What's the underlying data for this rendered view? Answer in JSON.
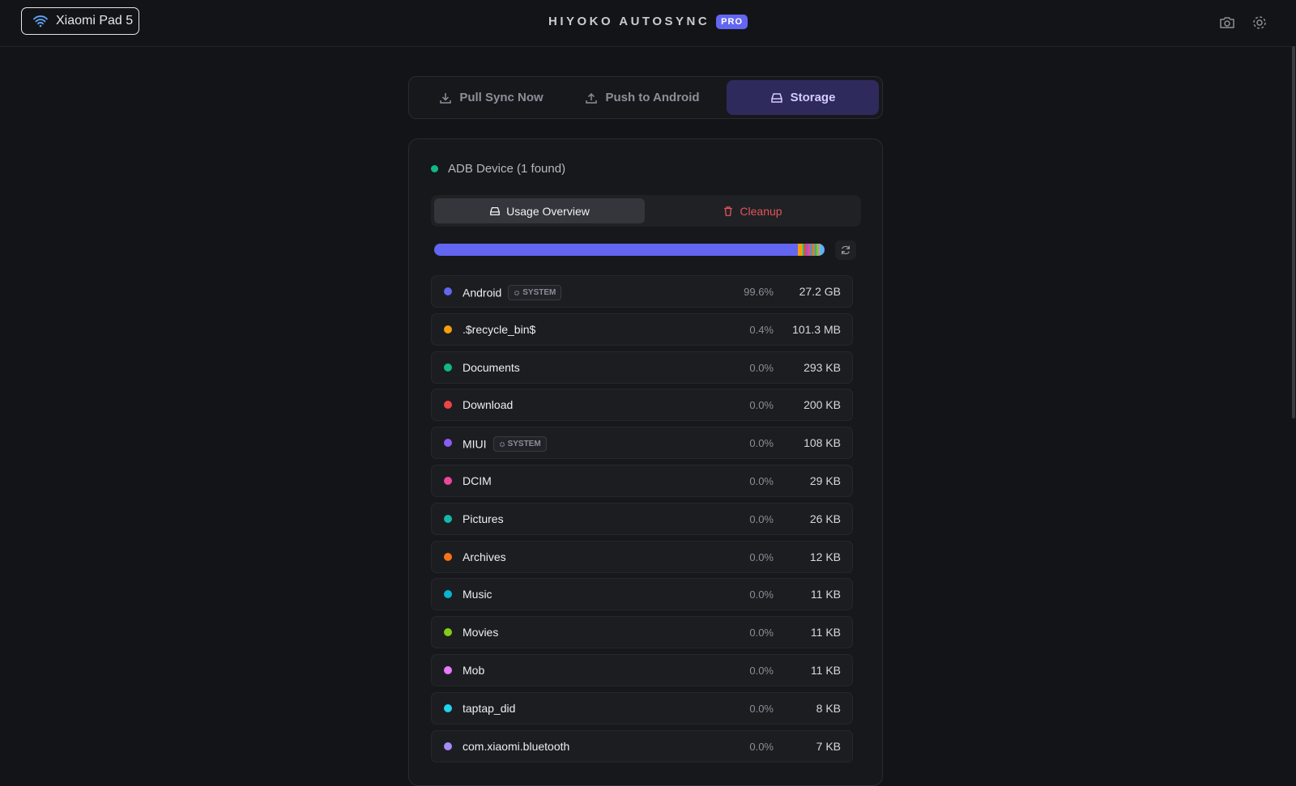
{
  "header": {
    "device": "Xiaomi Pad 5",
    "title": "HIYOKO AUTOSYNC",
    "badge": "PRO"
  },
  "tabs": [
    "Pull Sync Now",
    "Push to Android",
    "Storage"
  ],
  "device_status": "ADB Device (1 found)",
  "subtabs": [
    "Usage Overview",
    "Cleanup"
  ],
  "items": [
    {
      "name": "Android",
      "tag": "SYSTEM",
      "percent": "99.6%",
      "size": "27.2 GB",
      "color": "#6366f1"
    },
    {
      "name": ".$recycle_bin$",
      "percent": "0.4%",
      "size": "101.3 MB",
      "color": "#f59e0b"
    },
    {
      "name": "Documents",
      "percent": "0.0%",
      "size": "293 KB",
      "color": "#10b981"
    },
    {
      "name": "Download",
      "percent": "0.0%",
      "size": "200 KB",
      "color": "#ef4444"
    },
    {
      "name": "MIUI",
      "tag": "SYSTEM",
      "percent": "0.0%",
      "size": "108 KB",
      "color": "#8b5cf6"
    },
    {
      "name": "DCIM",
      "percent": "0.0%",
      "size": "29 KB",
      "color": "#ec4899"
    },
    {
      "name": "Pictures",
      "percent": "0.0%",
      "size": "26 KB",
      "color": "#14b8a6"
    },
    {
      "name": "Archives",
      "percent": "0.0%",
      "size": "12 KB",
      "color": "#f97316"
    },
    {
      "name": "Music",
      "percent": "0.0%",
      "size": "11 KB",
      "color": "#06b6d4"
    },
    {
      "name": "Movies",
      "percent": "0.0%",
      "size": "11 KB",
      "color": "#84cc16"
    },
    {
      "name": "Mob",
      "percent": "0.0%",
      "size": "11 KB",
      "color": "#e879f9"
    },
    {
      "name": "taptap_did",
      "percent": "0.0%",
      "size": "8 KB",
      "color": "#22d3ee"
    },
    {
      "name": "com.xiaomi.bluetooth",
      "percent": "0.0%",
      "size": "7 KB",
      "color": "#a78bfa"
    }
  ]
}
